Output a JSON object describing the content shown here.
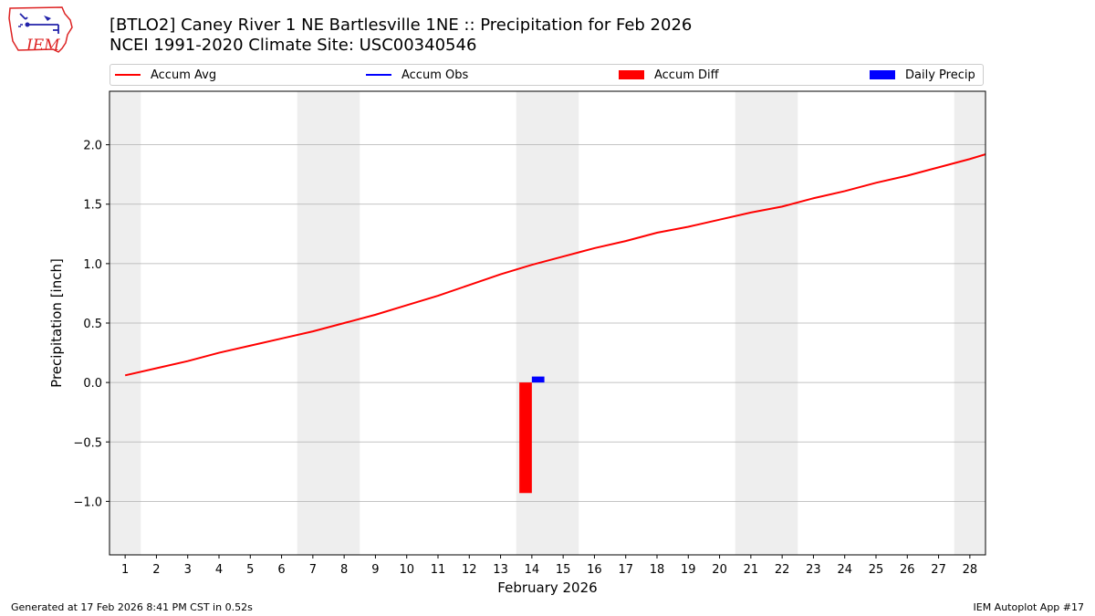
{
  "header": {
    "title_line1": "[BTLO2] Caney River 1 NE Bartlesville 1NE :: Precipitation for Feb 2026",
    "title_line2": "NCEI 1991-2020 Climate Site: USC00340546"
  },
  "logo": {
    "text": "IEM",
    "icon": "iowa-state-map-icon"
  },
  "footer": {
    "left": "Generated at 17 Feb 2026 8:41 PM CST in 0.52s",
    "right": "IEM Autoplot App #17"
  },
  "colors": {
    "accum_avg": "#ff0000",
    "accum_obs": "#0000ff",
    "accum_diff": "#ff0000",
    "daily_precip": "#0000ff",
    "weekend_shade": "#eeeeee",
    "grid": "#b0b0b0"
  },
  "chart_data": {
    "type": "line",
    "xlabel": "February 2026",
    "ylabel": "Precipitation [inch]",
    "ylim": [
      -1.45,
      2.45
    ],
    "xlim": [
      0.5,
      28.5
    ],
    "yticks": [
      -1.0,
      -0.5,
      0.0,
      0.5,
      1.0,
      1.5,
      2.0
    ],
    "ytick_labels": [
      "−1.0",
      "−0.5",
      "0.0",
      "0.5",
      "1.0",
      "1.5",
      "2.0"
    ],
    "x": [
      1,
      2,
      3,
      4,
      5,
      6,
      7,
      8,
      9,
      10,
      11,
      12,
      13,
      14,
      15,
      16,
      17,
      18,
      19,
      20,
      21,
      22,
      23,
      24,
      25,
      26,
      27,
      28
    ],
    "xtick_labels": [
      "1",
      "2",
      "3",
      "4",
      "5",
      "6",
      "7",
      "8",
      "9",
      "10",
      "11",
      "12",
      "13",
      "14",
      "15",
      "16",
      "17",
      "18",
      "19",
      "20",
      "21",
      "22",
      "23",
      "24",
      "25",
      "26",
      "27",
      "28"
    ],
    "grid": "horizontal",
    "legend_position": "top",
    "legend": [
      {
        "label": "Accum Avg",
        "kind": "line",
        "color": "#ff0000"
      },
      {
        "label": "Accum Obs",
        "kind": "line",
        "color": "#0000ff"
      },
      {
        "label": "Accum Diff",
        "kind": "patch",
        "color": "#ff0000"
      },
      {
        "label": "Daily Precip",
        "kind": "patch",
        "color": "#0000ff"
      }
    ],
    "weekend_bands": [
      [
        0.5,
        1.5
      ],
      [
        6.5,
        8.5
      ],
      [
        13.5,
        15.5
      ],
      [
        20.5,
        22.5
      ],
      [
        27.5,
        28.5
      ]
    ],
    "series": [
      {
        "name": "Accum Avg",
        "type": "line",
        "color": "#ff0000",
        "x": [
          1,
          2,
          3,
          4,
          5,
          6,
          7,
          8,
          9,
          10,
          11,
          12,
          13,
          14,
          15,
          16,
          17,
          18,
          19,
          20,
          21,
          22,
          23,
          24,
          25,
          26,
          27,
          28,
          28.5
        ],
        "values": [
          0.06,
          0.12,
          0.18,
          0.25,
          0.31,
          0.37,
          0.43,
          0.5,
          0.57,
          0.65,
          0.73,
          0.82,
          0.91,
          0.99,
          1.06,
          1.13,
          1.19,
          1.26,
          1.31,
          1.37,
          1.43,
          1.48,
          1.55,
          1.61,
          1.68,
          1.74,
          1.81,
          1.88,
          1.92
        ]
      },
      {
        "name": "Accum Diff",
        "type": "bar",
        "color": "#ff0000",
        "x": [
          14
        ],
        "values": [
          -0.93
        ]
      },
      {
        "name": "Daily Precip",
        "type": "bar",
        "color": "#0000ff",
        "x": [
          14
        ],
        "values": [
          0.05
        ]
      }
    ]
  }
}
